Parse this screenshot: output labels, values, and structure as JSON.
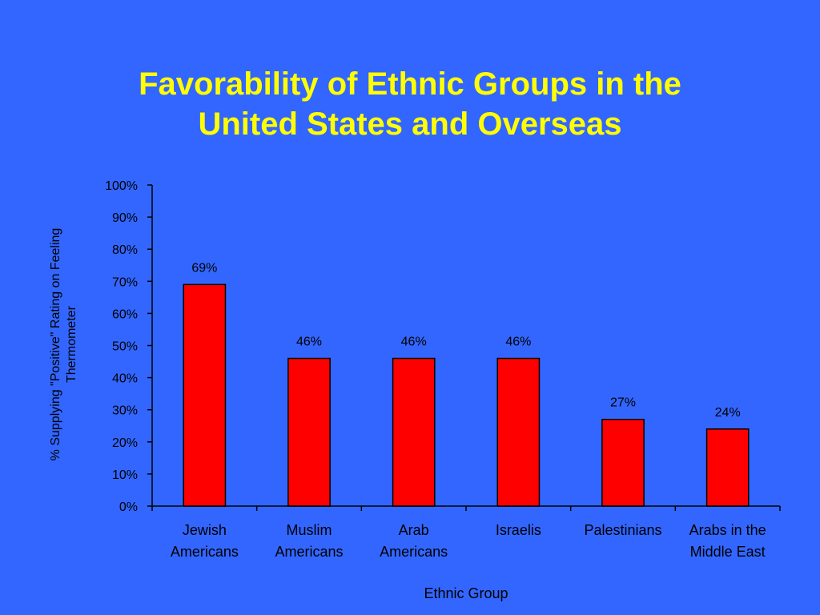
{
  "chart_data": {
    "type": "bar",
    "title": [
      "Favorability of Ethnic Groups in the",
      "United States and Overseas"
    ],
    "xlabel": "Ethnic Group",
    "ylabel": [
      "% Supplying \"Positive\" Rating on Feeling",
      "Thermometer"
    ],
    "categories": [
      [
        "Jewish",
        "Americans"
      ],
      [
        "Muslim",
        "Americans"
      ],
      [
        "Arab",
        "Americans"
      ],
      [
        "Israelis"
      ],
      [
        "Palestinians"
      ],
      [
        "Arabs in the",
        "Middle East"
      ]
    ],
    "values": [
      69,
      46,
      46,
      46,
      27,
      24
    ],
    "data_labels": [
      "69%",
      "46%",
      "46%",
      "46%",
      "27%",
      "24%"
    ],
    "ylim": [
      0,
      100
    ],
    "yticks": [
      "0%",
      "10%",
      "20%",
      "30%",
      "40%",
      "50%",
      "60%",
      "70%",
      "80%",
      "90%",
      "100%"
    ],
    "grid": false,
    "colors": {
      "background": "#3366FF",
      "bar": "#FF0000",
      "title": "#FFFF00",
      "text": "#000000"
    }
  }
}
